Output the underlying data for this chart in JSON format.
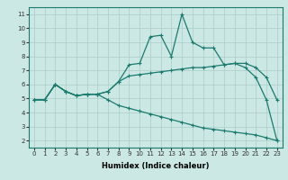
{
  "xlabel": "Humidex (Indice chaleur)",
  "ylabel": "",
  "background_color": "#cce8e4",
  "grid_color": "#aaccc8",
  "line_color": "#1a7a6e",
  "xlim": [
    -0.5,
    23.5
  ],
  "ylim": [
    1.5,
    11.5
  ],
  "xticks": [
    0,
    1,
    2,
    3,
    4,
    5,
    6,
    7,
    8,
    9,
    10,
    11,
    12,
    13,
    14,
    15,
    16,
    17,
    18,
    19,
    20,
    21,
    22,
    23
  ],
  "yticks": [
    2,
    3,
    4,
    5,
    6,
    7,
    8,
    9,
    10,
    11
  ],
  "line1_x": [
    0,
    1,
    2,
    3,
    4,
    5,
    6,
    7,
    8,
    9,
    10,
    11,
    12,
    13,
    14,
    15,
    16,
    17,
    18,
    19,
    20,
    21,
    22,
    23
  ],
  "line1_y": [
    4.9,
    4.9,
    6.0,
    5.5,
    5.2,
    5.3,
    5.3,
    5.5,
    6.2,
    7.4,
    7.5,
    9.4,
    9.5,
    8.0,
    11.0,
    9.0,
    8.6,
    8.6,
    7.4,
    7.5,
    7.2,
    6.5,
    4.9,
    2.0
  ],
  "line2_x": [
    0,
    1,
    2,
    3,
    4,
    5,
    6,
    7,
    8,
    9,
    10,
    11,
    12,
    13,
    14,
    15,
    16,
    17,
    18,
    19,
    20,
    21,
    22,
    23
  ],
  "line2_y": [
    4.9,
    4.9,
    6.0,
    5.5,
    5.2,
    5.3,
    5.3,
    5.5,
    6.2,
    6.6,
    6.7,
    6.8,
    6.9,
    7.0,
    7.1,
    7.2,
    7.2,
    7.3,
    7.4,
    7.5,
    7.5,
    7.2,
    6.5,
    4.9
  ],
  "line3_x": [
    0,
    1,
    2,
    3,
    4,
    5,
    6,
    7,
    8,
    9,
    10,
    11,
    12,
    13,
    14,
    15,
    16,
    17,
    18,
    19,
    20,
    21,
    22,
    23
  ],
  "line3_y": [
    4.9,
    4.9,
    6.0,
    5.5,
    5.2,
    5.3,
    5.3,
    4.9,
    4.5,
    4.3,
    4.1,
    3.9,
    3.7,
    3.5,
    3.3,
    3.1,
    2.9,
    2.8,
    2.7,
    2.6,
    2.5,
    2.4,
    2.2,
    2.0
  ],
  "marker": "+",
  "markersize": 3,
  "linewidth": 0.9,
  "tick_fontsize": 5,
  "xlabel_fontsize": 6
}
